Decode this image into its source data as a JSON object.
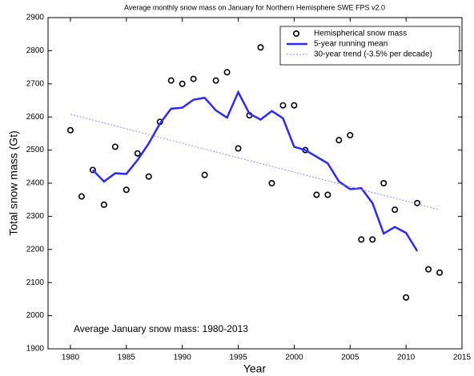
{
  "chart_data": {
    "type": "scatter",
    "title": "Average monthly snow mass on January for Northern Hemisphere SWE FPS v2.0",
    "xlabel": "Year",
    "ylabel": "Total snow mass (Gt)",
    "annotation": "Average January snow mass: 1980-2013",
    "xlim": [
      1978,
      2015
    ],
    "ylim": [
      1900,
      2900
    ],
    "xticks": [
      1980,
      1985,
      1990,
      1995,
      2000,
      2005,
      2010,
      2015
    ],
    "yticks": [
      1900,
      2000,
      2100,
      2200,
      2300,
      2400,
      2500,
      2600,
      2700,
      2800,
      2900
    ],
    "legend": "upper right",
    "series": [
      {
        "name": "Hemispherical snow mass",
        "color": "#000000",
        "style": "marker",
        "x": [
          1980,
          1981,
          1982,
          1983,
          1984,
          1985,
          1986,
          1987,
          1988,
          1989,
          1990,
          1991,
          1992,
          1993,
          1994,
          1995,
          1996,
          1997,
          1998,
          1999,
          2000,
          2001,
          2002,
          2003,
          2004,
          2005,
          2006,
          2007,
          2008,
          2009,
          2010,
          2011,
          2012,
          2013
        ],
        "values": [
          2560,
          2360,
          2440,
          2335,
          2510,
          2380,
          2490,
          2420,
          2585,
          2710,
          2700,
          2715,
          2425,
          2710,
          2735,
          2505,
          2605,
          2810,
          2400,
          2635,
          2635,
          2500,
          2365,
          2365,
          2530,
          2545,
          2230,
          2230,
          2400,
          2320,
          2055,
          2340,
          2140,
          2130
        ]
      },
      {
        "name": "5-year running mean",
        "color": "#2b2bff",
        "style": "solid",
        "x": [
          1982,
          1983,
          1984,
          1985,
          1986,
          1987,
          1988,
          1989,
          1990,
          1991,
          1992,
          1993,
          1994,
          1995,
          1996,
          1997,
          1998,
          1999,
          2000,
          2001,
          2002,
          2003,
          2004,
          2005,
          2006,
          2007,
          2008,
          2009,
          2010,
          2011
        ],
        "values": [
          2440,
          2405,
          2430,
          2428,
          2470,
          2520,
          2580,
          2625,
          2628,
          2652,
          2658,
          2620,
          2598,
          2675,
          2610,
          2592,
          2618,
          2596,
          2510,
          2500,
          2480,
          2460,
          2405,
          2382,
          2385,
          2340,
          2248,
          2268,
          2250,
          2195
        ]
      },
      {
        "name": "30-year trend (-3.5% per decade)",
        "color": "#8c8cff",
        "style": "dotted",
        "x": [
          1980,
          2013
        ],
        "values": [
          2608,
          2320
        ]
      }
    ]
  }
}
